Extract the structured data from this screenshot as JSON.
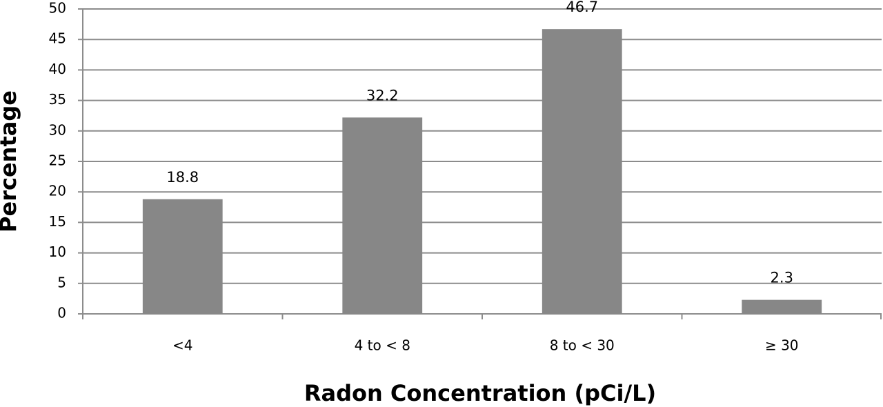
{
  "chart_data": {
    "type": "bar",
    "x_label": "Radon Concentration (pCi/L)",
    "y_label": "Percentage",
    "categories": [
      "<4",
      "4 to < 8",
      "8 to < 30",
      "≥ 30"
    ],
    "values": [
      18.8,
      32.2,
      46.7,
      2.3
    ],
    "color": "#878787",
    "ylim": [
      0,
      50
    ],
    "yticks": [
      0,
      5,
      10,
      15,
      20,
      25,
      30,
      35,
      40,
      45,
      50
    ],
    "grid": true
  }
}
